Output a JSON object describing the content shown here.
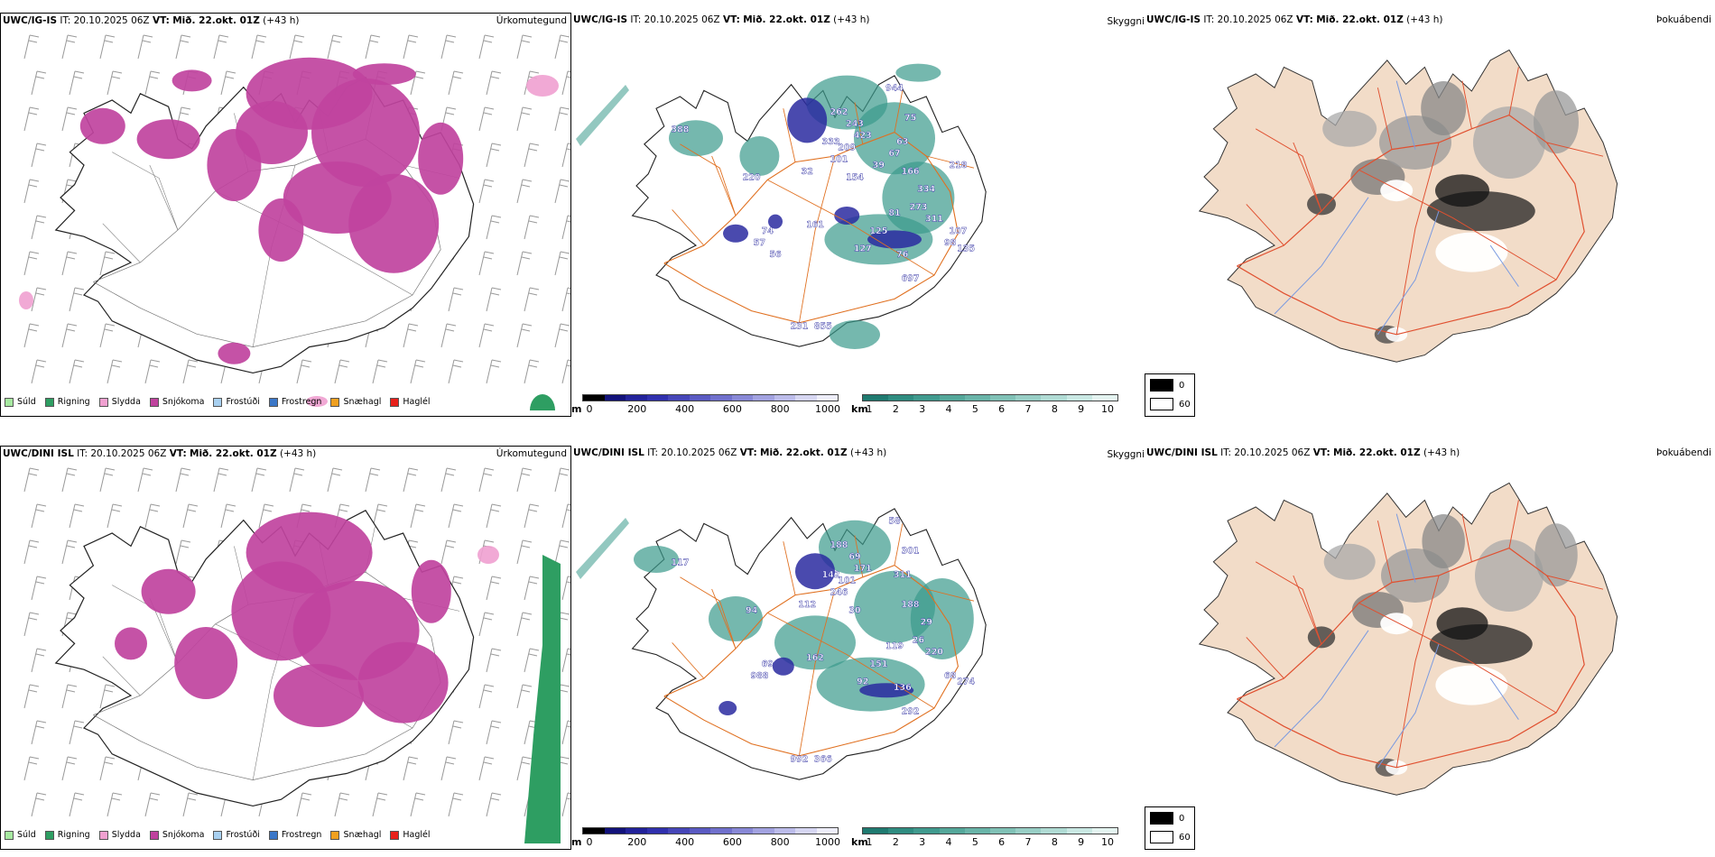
{
  "colors": {
    "snow": "#c0439e",
    "rain": "#2e9e62",
    "drizzle": "#a6e8a0",
    "sleet": "#f0a0d0",
    "frozen_drizzle": "#a8d0f0",
    "frozen_rain": "#3b77c8",
    "snow_hail": "#f0a020",
    "hail": "#e8201a",
    "coast": "#222222",
    "roads": "#e07020",
    "fog_land": "#f2dcc8",
    "fog_roads": "#e05030",
    "fog_rivers": "#7a9ae0",
    "vis_teal": "#3a9a8c",
    "cloud_blue": "#2a2aa0"
  },
  "rows": [
    {
      "model": "UWC/IG-IS",
      "it_label": "IT:",
      "it_value": "20.10.2025 06Z",
      "vt_label": "VT:",
      "vt_value": "Mið. 22.okt. 01Z",
      "lead": "(+43 h)"
    },
    {
      "model": "UWC/DINI ISL",
      "it_label": "IT:",
      "it_value": "20.10.2025 06Z",
      "vt_label": "VT:",
      "vt_value": "Mið. 22.okt. 01Z",
      "lead": "(+43 h)"
    }
  ],
  "panels": {
    "precip_title": "Úrkomutegund",
    "visibility_title": "Skyggni",
    "fog_title": "Þokuábendi"
  },
  "precip_legend": [
    {
      "label": "Súld",
      "color": "#a6e8a0"
    },
    {
      "label": "Rigning",
      "color": "#2e9e62"
    },
    {
      "label": "Slydda",
      "color": "#f0a0d0"
    },
    {
      "label": "Snjókoma",
      "color": "#c0439e"
    },
    {
      "label": "Frostúði",
      "color": "#a8d0f0"
    },
    {
      "label": "Frostregn",
      "color": "#3b77c8"
    },
    {
      "label": "Snæhagl",
      "color": "#f0a020"
    },
    {
      "label": "Haglél",
      "color": "#e8201a"
    }
  ],
  "cloudbase_bar": {
    "unit": "m",
    "ticks": [
      "0",
      "200",
      "400",
      "600",
      "800",
      "1000"
    ],
    "colors": [
      "#000000",
      "#12127a",
      "#22229a",
      "#3030ad",
      "#4646b8",
      "#5a5ac2",
      "#7070cc",
      "#8888d6",
      "#a2a2e0",
      "#bcbcea",
      "#d6d6f2",
      "#eeeefa"
    ]
  },
  "visibility_bar": {
    "unit": "km",
    "ticks": [
      "1",
      "2",
      "3",
      "4",
      "5",
      "6",
      "7",
      "8",
      "9",
      "10"
    ],
    "colors": [
      "#1f7a70",
      "#2f8c80",
      "#409a8e",
      "#54a79a",
      "#69b4a8",
      "#80c1b6",
      "#98cec5",
      "#b0dbd4",
      "#c9e8e3",
      "#e4f4f1"
    ]
  },
  "fog_legend": {
    "high": "0",
    "low": "60"
  },
  "cloud_labels_top": [
    "262",
    "243",
    "209",
    "101",
    "154",
    "333",
    "423",
    "32",
    "220",
    "944",
    "75",
    "63",
    "166",
    "334",
    "273",
    "81",
    "311",
    "125",
    "127",
    "76",
    "98",
    "135",
    "697",
    "161",
    "74",
    "57",
    "231",
    "855",
    "388",
    "39",
    "67",
    "218",
    "107",
    "56"
  ],
  "cloud_labels_bottom": [
    "188",
    "69",
    "101",
    "246",
    "30",
    "142",
    "171",
    "112",
    "94",
    "58",
    "301",
    "311",
    "188",
    "29",
    "26",
    "119",
    "220",
    "151",
    "92",
    "136",
    "68",
    "274",
    "292",
    "162",
    "69",
    "988",
    "992",
    "366",
    "117"
  ]
}
